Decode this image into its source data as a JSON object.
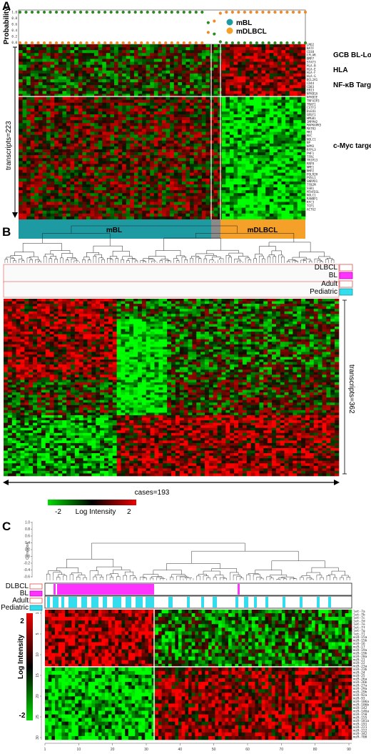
{
  "panels": {
    "a": {
      "letter": "A",
      "ylabel": "Probability",
      "yticks": [
        "1.0",
        "0.8",
        "0.6",
        "0.4",
        "0.2",
        "0.0"
      ],
      "legend": [
        {
          "name": "mBL",
          "color": "#1d9aa2"
        },
        {
          "name": "mDLBCL",
          "color": "#f5a028"
        }
      ],
      "transcripts_label": "transcripts=223",
      "groups": [
        {
          "name": "mBL",
          "color": "#1d9aa2"
        },
        {
          "name": "",
          "color": "#8a8a8a"
        },
        {
          "name": "mDLBCL",
          "color": "#f5a028"
        }
      ],
      "gene_sets": [
        "GCB BL-Low",
        "HLA",
        "NF-κB Targets",
        "c-Myc targets"
      ],
      "genes": [
        "LMO2",
        "BATF",
        "CD38",
        "CFLAR",
        "BMP7",
        "STAT3",
        "HLA-B",
        "HLA-E",
        "HLA-F",
        "HLA-G",
        "BCL2A1",
        "CD44",
        "CD83",
        "EBI3",
        "NFKB1A",
        "NFKBIE",
        "TNFAIP3",
        "TRAF1",
        "CSTF3",
        "DLEU1",
        "GRSF1",
        "HMGB1",
        "IMPPH2",
        "MAPKAPK5",
        "MATR3",
        "MRI",
        "MYC",
        "NOLC1",
        "NP",
        "NPM3",
        "RFPL3",
        "PHF1",
        "TFRC",
        "TRIP13",
        "RRP9",
        "NME1",
        "NHP2",
        "POLR2H",
        "PUSL1",
        "SNRPD1",
        "TFB2M",
        "SSB1",
        "MTHFD1L",
        "NOLC1",
        "RANBP1",
        "RFC3",
        "TCP1",
        "ACTG2"
      ]
    },
    "b": {
      "letter": "B",
      "legend_groups": [
        {
          "items": [
            {
              "name": "DLBCL",
              "color": "#ffffff",
              "border": "#e05050"
            },
            {
              "name": "BL",
              "color": "#ff33ff",
              "border": "#c000c0"
            }
          ]
        },
        {
          "items": [
            {
              "name": "Adult",
              "color": "#ffffff",
              "border": "#e05050"
            },
            {
              "name": "Pediatric",
              "color": "#33ddee",
              "border": "#1d9aa2"
            }
          ]
        }
      ],
      "transcripts_label": "transcripts=362",
      "cases_label": "cases=193",
      "scale": {
        "min": "-2",
        "max": "2",
        "label": "Log Intensity"
      }
    },
    "c": {
      "letter": "C",
      "dendro_axis_label": "Correlation",
      "dendro_ticks": [
        "-0.6",
        "-0.4",
        "-0.2",
        "0.0",
        "0.2",
        "0.4",
        "0.6",
        "0.8",
        "1.0"
      ],
      "legend": [
        {
          "name": "DLBCL",
          "color": "#ffffff",
          "border": "#e05050"
        },
        {
          "name": "BL",
          "color": "#ff33ff",
          "border": "#c000c0"
        },
        {
          "name": "Adult",
          "color": "#ffffff",
          "border": "#e05050"
        },
        {
          "name": "Pediatric",
          "color": "#33ddee",
          "border": "#1d9aa2"
        }
      ],
      "scale": {
        "max": "2",
        "min": "-2",
        "label": "Log Intensity"
      },
      "left_ticks": [
        "1",
        "5",
        "10",
        "15",
        "20",
        "25",
        "30"
      ],
      "xticks": [
        "1",
        "10",
        "20",
        "30",
        "40",
        "50",
        "60",
        "70",
        "80",
        "90"
      ],
      "mirnas": [
        "let-7a",
        "let-7b",
        "let-7c",
        "let-7d",
        "let-7e",
        "let-7f",
        "let-7g",
        "let-7i",
        "miR-15a",
        "miR-15b",
        "miR-16",
        "miR-17",
        "miR-19a",
        "miR-19b",
        "miR-20a",
        "miR-21",
        "miR-22",
        "miR-23a",
        "miR-23b",
        "miR-24",
        "miR-25",
        "miR-26a",
        "miR-26b",
        "miR-27a",
        "miR-29a",
        "miR-29b",
        "miR-92a",
        "miR-93",
        "miR-106a",
        "miR-106b",
        "miR-142",
        "miR-146a",
        "miR-150",
        "miR-155",
        "miR-181a",
        "miR-191",
        "miR-221",
        "miR-222",
        "miR-342",
        "miR-708"
      ]
    }
  }
}
